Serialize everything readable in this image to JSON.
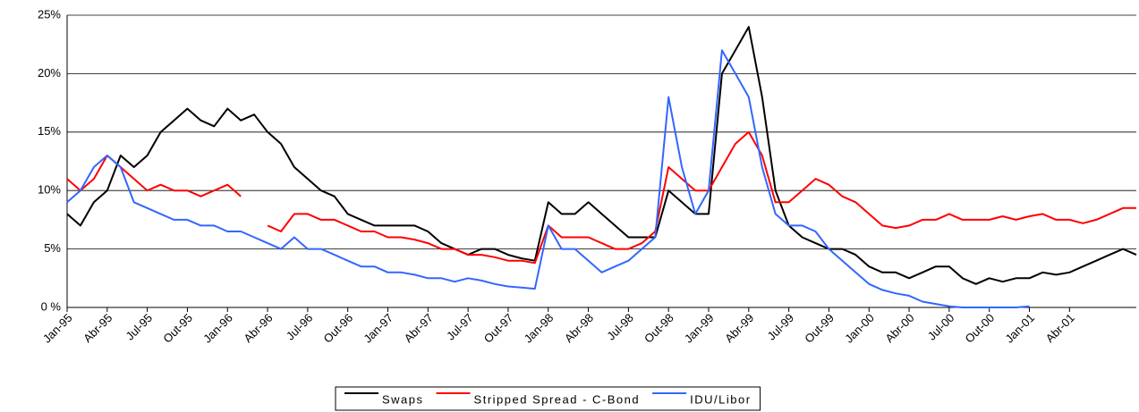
{
  "chart_data": {
    "type": "line",
    "categories": [
      "Jan-95",
      null,
      null,
      "Abr-95",
      null,
      null,
      "Jul-95",
      null,
      null,
      "Out-95",
      null,
      null,
      "Jan-96",
      null,
      null,
      "Abr-96",
      null,
      null,
      "Jul-96",
      null,
      null,
      "Out-96",
      null,
      null,
      "Jan-97",
      null,
      null,
      "Abr-97",
      null,
      null,
      "Jul-97",
      null,
      null,
      "Out-97",
      null,
      null,
      "Jan-98",
      null,
      null,
      "Abr-98",
      null,
      null,
      "Jul-98",
      null,
      null,
      "Out-98",
      null,
      null,
      "Jan-99",
      null,
      null,
      "Abr-99",
      null,
      null,
      "Jul-99",
      null,
      null,
      "Out-99",
      null,
      null,
      "Jan-00",
      null,
      null,
      "Abr-00",
      null,
      null,
      "Jul-00",
      null,
      null,
      "Out-00",
      null,
      null,
      "Jan-01",
      null,
      null,
      "Abr-01",
      null,
      null,
      null,
      null,
      null
    ],
    "series": [
      {
        "name": "Swaps",
        "color": "#000000",
        "values": [
          8,
          7,
          9,
          10,
          13,
          12,
          13,
          15,
          16,
          17,
          16,
          15.5,
          17,
          16,
          16.5,
          15,
          14,
          12,
          11,
          10,
          9.5,
          8,
          7.5,
          7,
          7,
          7,
          7,
          6.5,
          5.5,
          5,
          4.5,
          5,
          5,
          4.5,
          4.2,
          4,
          9,
          8,
          8,
          9,
          8,
          7,
          6,
          6,
          6,
          10,
          9,
          8,
          8,
          20,
          22,
          24,
          18,
          10,
          7,
          6,
          5.5,
          5,
          5,
          4.5,
          3.5,
          3,
          3,
          2.5,
          3,
          3.5,
          3.5,
          2.5,
          2,
          2.5,
          2.2,
          2.5,
          2.5,
          3,
          2.8,
          3,
          3.5,
          4,
          4.5,
          5,
          4.5
        ]
      },
      {
        "name": "Stripped Spread - C-Bond",
        "color": "#ff0000",
        "values": [
          11,
          10,
          11,
          13,
          12,
          11,
          10,
          10.5,
          10,
          10,
          9.5,
          10,
          10.5,
          9.5,
          null,
          7,
          6.5,
          8,
          8,
          7.5,
          7.5,
          7,
          6.5,
          6.5,
          6,
          6,
          5.8,
          5.5,
          5,
          5,
          4.5,
          4.5,
          4.3,
          4,
          4,
          3.8,
          7,
          6,
          6,
          6,
          5.5,
          5,
          5,
          5.5,
          6.5,
          12,
          11,
          10,
          10,
          12,
          14,
          15,
          13,
          9,
          9,
          10,
          11,
          10.5,
          9.5,
          9,
          8,
          7,
          6.8,
          7,
          7.5,
          7.5,
          8,
          7.5,
          7.5,
          7.5,
          7.8,
          7.5,
          7.8,
          8,
          7.5,
          7.5,
          7.2,
          7.5,
          8,
          8.5,
          8.5
        ]
      },
      {
        "name": "IDU/Libor",
        "color": "#3366ff",
        "values": [
          9,
          10,
          12,
          13,
          12,
          9,
          8.5,
          8,
          7.5,
          7.5,
          7,
          7,
          6.5,
          6.5,
          6,
          5.5,
          5,
          6,
          5,
          5,
          4.5,
          4,
          3.5,
          3.5,
          3,
          3,
          2.8,
          2.5,
          2.5,
          2.2,
          2.5,
          2.3,
          2,
          1.8,
          1.7,
          1.6,
          7,
          5,
          5,
          4,
          3,
          3.5,
          4,
          5,
          6,
          18,
          12,
          8,
          10,
          22,
          20,
          18,
          12,
          8,
          7,
          7,
          6.5,
          5,
          4,
          3,
          2,
          1.5,
          1.2,
          1,
          0.5,
          0.3,
          0.1,
          0,
          0,
          0,
          0,
          0,
          0.1,
          null,
          null,
          null,
          null,
          null,
          null,
          null,
          null
        ]
      }
    ],
    "ylim": [
      0,
      25
    ],
    "yticks": [
      {
        "value": 0,
        "label": "0 %"
      },
      {
        "value": 5,
        "label": "5%"
      },
      {
        "value": 10,
        "label": "10%"
      },
      {
        "value": 15,
        "label": "15%"
      },
      {
        "value": 20,
        "label": "20%"
      },
      {
        "value": 25,
        "label": "25%"
      }
    ],
    "grid": true,
    "legend": "bottom"
  }
}
